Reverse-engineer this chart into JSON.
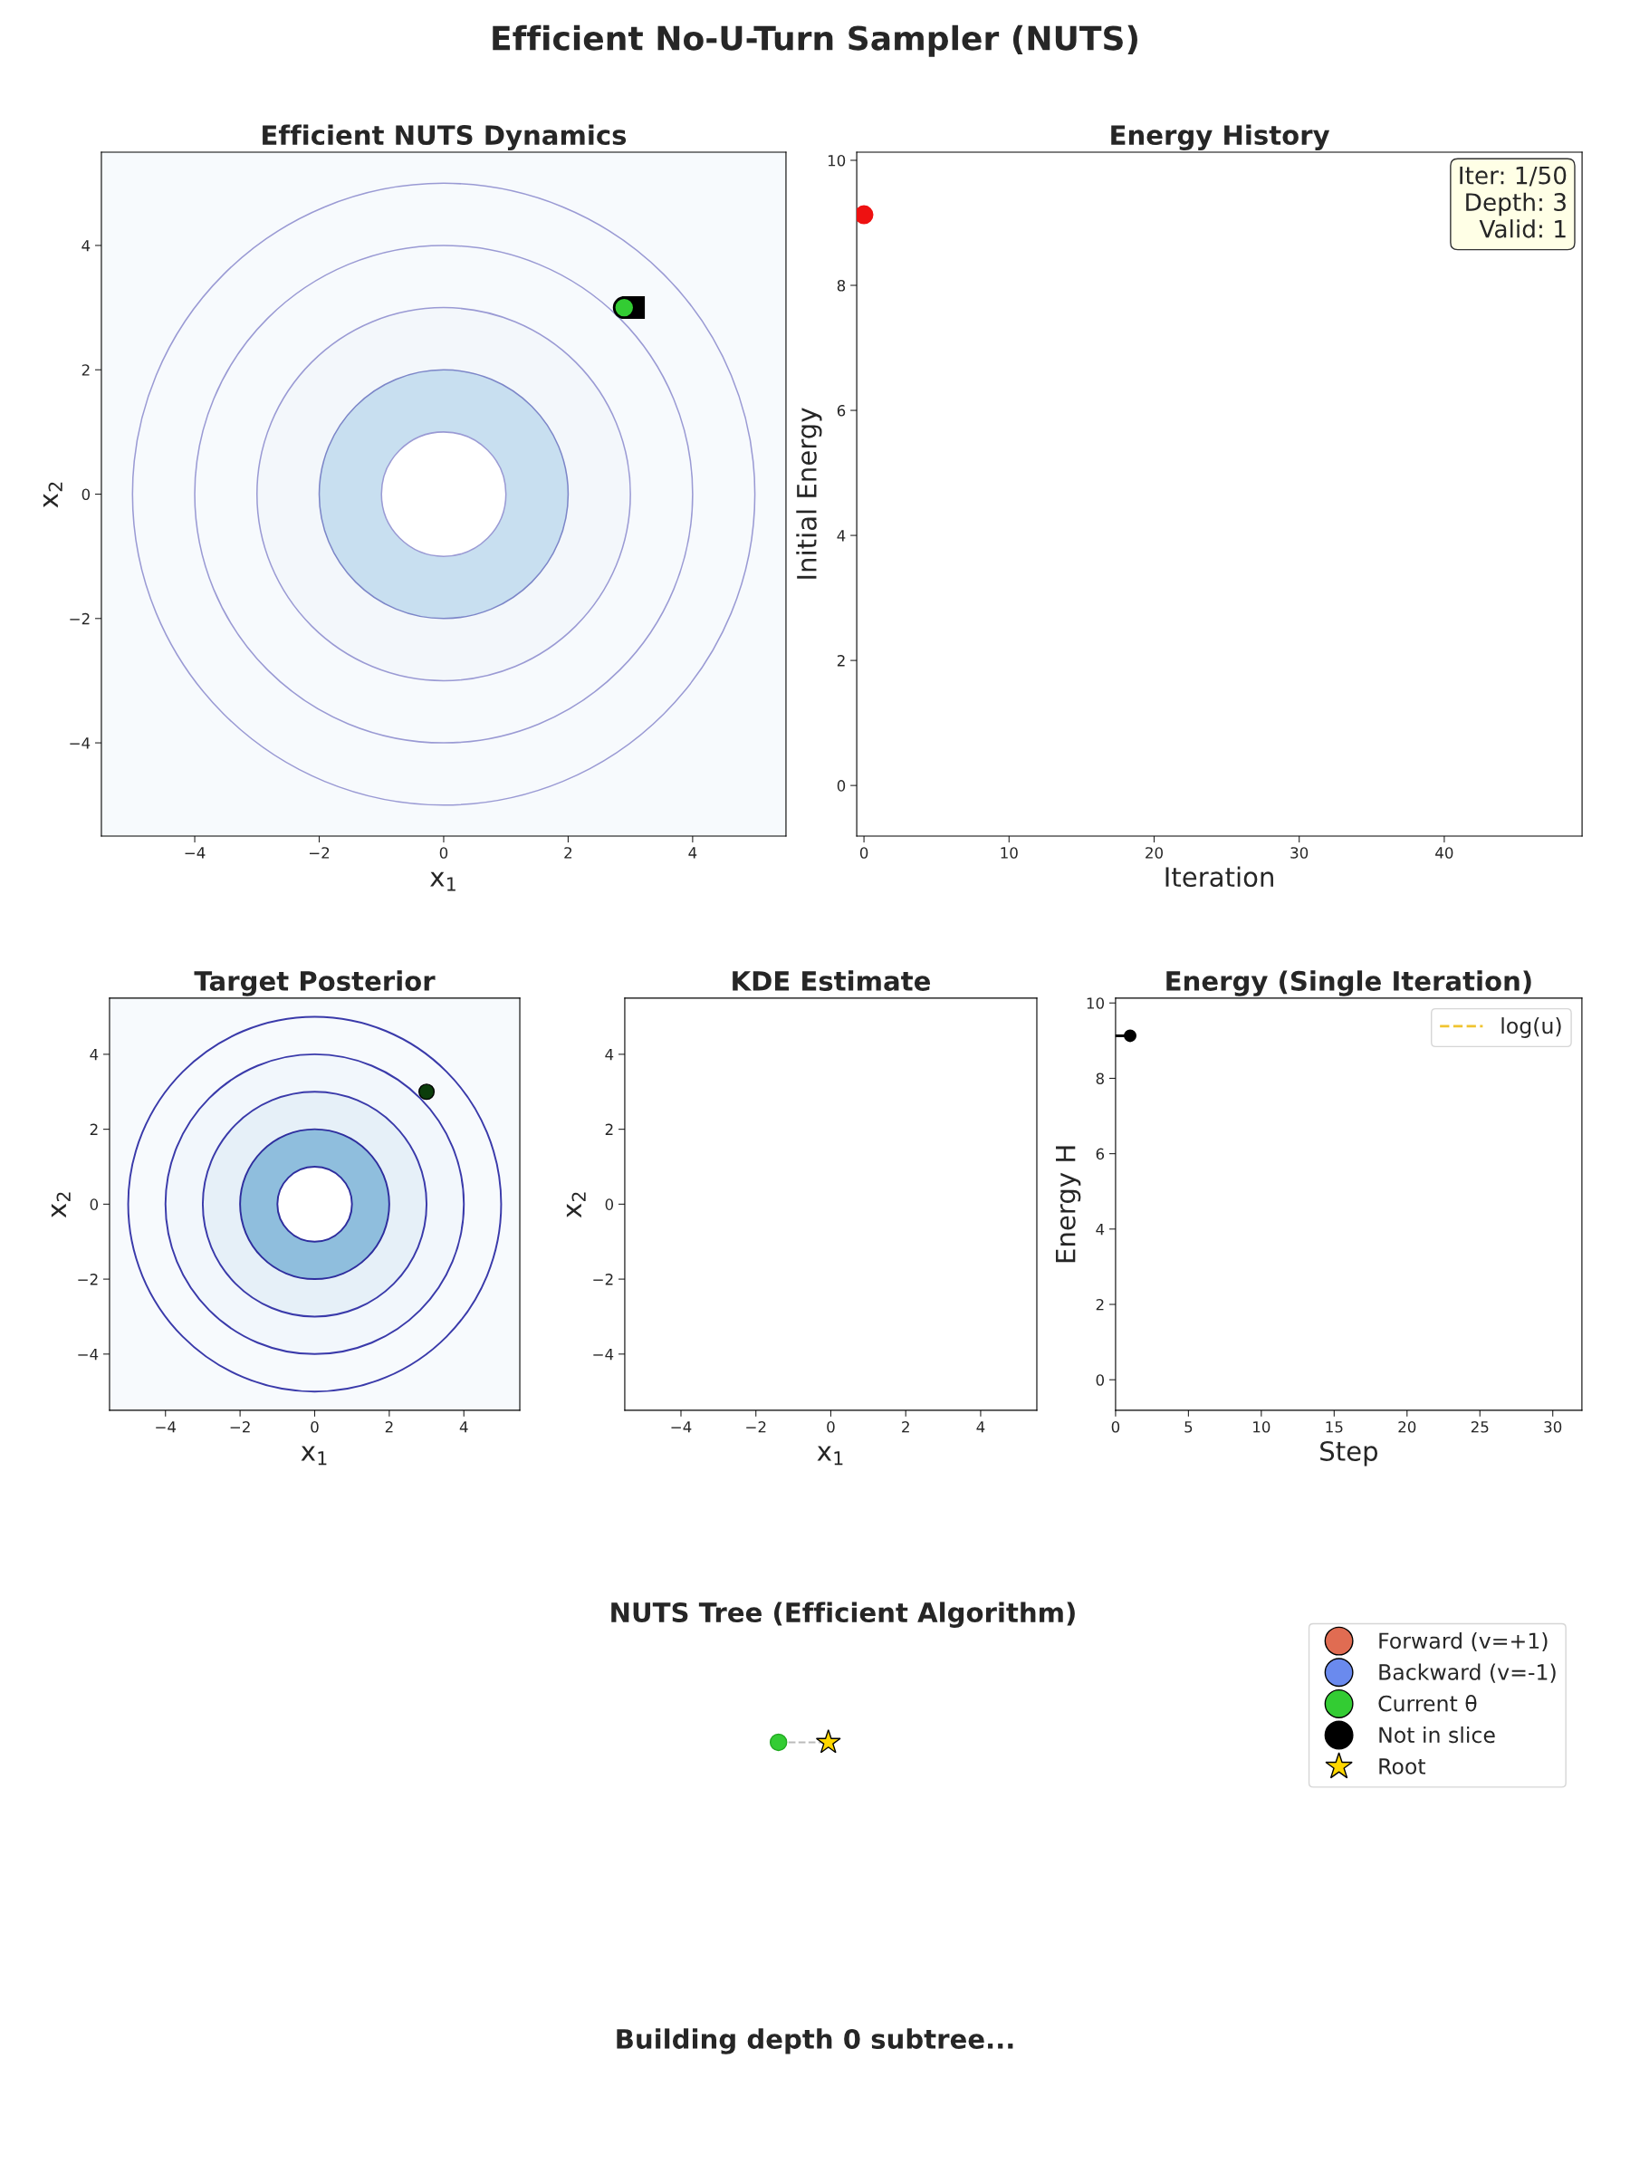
{
  "chart_data": [
    {
      "type": "scatter",
      "title": "Efficient NUTS Dynamics",
      "xlabel": "x$_{1}$",
      "ylabel": "x$_{2}$",
      "xlim": [
        -5.5,
        5.5
      ],
      "ylim": [
        -5.5,
        5.5
      ],
      "xticks": [
        -4,
        -2,
        0,
        2,
        4
      ],
      "yticks": [
        -4,
        -2,
        0,
        2,
        4
      ],
      "grid": false,
      "legend": false,
      "series": [
        {
          "marker": "square",
          "color": "#000000",
          "x": [
            3.05
          ],
          "values": [
            3.0
          ]
        },
        {
          "marker": "circle",
          "color": "#33cc33",
          "x": [
            2.9
          ],
          "values": [
            3.0
          ]
        }
      ]
    },
    {
      "type": "scatter",
      "title": "Energy History",
      "xlabel": "Iteration",
      "ylabel": "Initial Energy",
      "xlim": [
        -0.5,
        49.5
      ],
      "ylim": [
        -0.81,
        10.13
      ],
      "xticks": [
        0,
        10,
        20,
        30,
        40
      ],
      "yticks": [
        0,
        2,
        4,
        6,
        8,
        10
      ],
      "grid": false,
      "legend": false,
      "marker": "circle",
      "annotations": [
        "Iter: 1/50\nDepth: 3\nValid: 1"
      ],
      "series": [
        {
          "color": "#ee1111",
          "x": [
            0
          ],
          "values": [
            9.13
          ]
        }
      ]
    },
    {
      "type": "scatter",
      "title": "Target Posterior",
      "xlabel": "x$_{1}$",
      "ylabel": "x$_{2}$",
      "xlim": [
        -5.5,
        5.5
      ],
      "ylim": [
        -5.5,
        5.5
      ],
      "xticks": [
        -4,
        -2,
        0,
        2,
        4
      ],
      "yticks": [
        -4,
        -2,
        0,
        2,
        4
      ],
      "grid": false,
      "legend": false,
      "series": [
        {
          "marker": "circle",
          "color": "#0b3d0b",
          "x": [
            3.0
          ],
          "values": [
            3.0
          ]
        }
      ]
    },
    {
      "type": "scatter",
      "title": "KDE Estimate",
      "xlabel": "x$_{1}$",
      "ylabel": "x$_{2}$",
      "xlim": [
        -5.5,
        5.5
      ],
      "ylim": [
        -5.5,
        5.5
      ],
      "xticks": [
        -4,
        -2,
        0,
        2,
        4
      ],
      "yticks": [
        -4,
        -2,
        0,
        2,
        4
      ],
      "grid": false,
      "legend": false
    },
    {
      "type": "line",
      "title": "Energy (Single Iteration)",
      "xlabel": "Step",
      "ylabel": "Energy H",
      "xlim": [
        0,
        32
      ],
      "ylim": [
        -0.81,
        10.13
      ],
      "xticks": [
        0,
        5,
        10,
        15,
        20,
        25,
        30
      ],
      "yticks": [
        0,
        2,
        4,
        6,
        8,
        10
      ],
      "grid": false,
      "legend": "top right",
      "series": [
        {
          "type": "line",
          "color": "#000000",
          "x": [
            0,
            1
          ],
          "values": [
            9.13,
            9.13
          ]
        },
        {
          "type": "scatter",
          "marker": "circle",
          "color": "#000000",
          "x": [
            1
          ],
          "values": [
            9.13
          ]
        },
        {
          "type": "line",
          "name": "log(u)",
          "color": "#f0c430",
          "line_style": "dashed"
        }
      ]
    },
    {
      "type": "other",
      "title": "NUTS Tree (Efficient Algorithm)",
      "legend": "top right",
      "annotations": [
        "Building depth 0 subtree..."
      ],
      "series": [
        {
          "name": "Forward (v=+1)",
          "color": "#e06c52",
          "marker": "circle"
        },
        {
          "name": "Backward (v=-1)",
          "color": "#6a8aee",
          "marker": "circle"
        },
        {
          "name": "Current θ",
          "color": "#33cc33",
          "marker": "circle"
        },
        {
          "name": "Not in slice",
          "color": "#000000",
          "marker": "circle"
        },
        {
          "name": "Root",
          "color": "#ffd700",
          "marker": "star"
        }
      ]
    },
    {
      "type": "other",
      "title": "Efficient No-U-Turn Sampler (NUTS)"
    }
  ]
}
